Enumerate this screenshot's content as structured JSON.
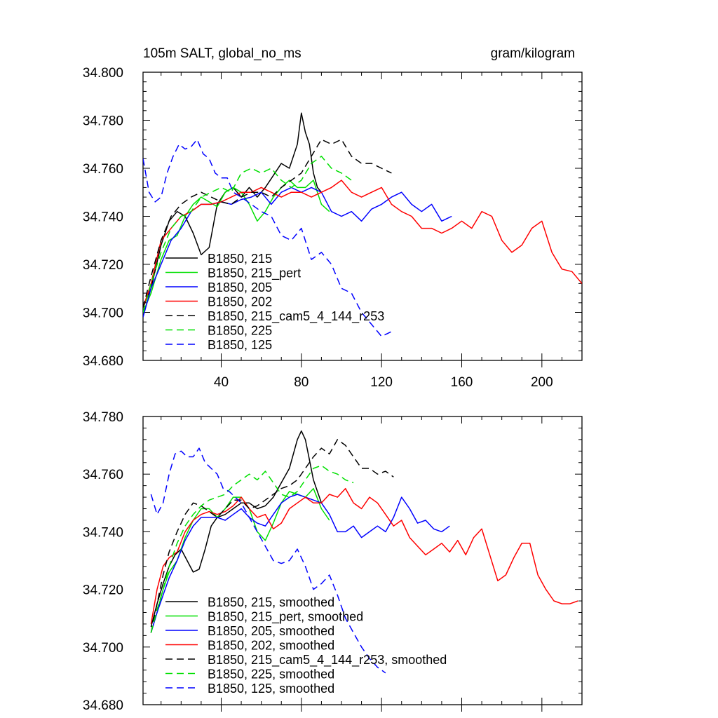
{
  "chart_data": [
    {
      "type": "line",
      "title_left": "105m SALT, global_no_ms",
      "title_right": "gram/kilogram",
      "xlim": [
        1,
        220
      ],
      "ylim": [
        34.68,
        34.8
      ],
      "xticks": [
        40,
        80,
        120,
        160,
        200
      ],
      "xtick_labels": [
        "40",
        "80",
        "120",
        "160",
        "200"
      ],
      "yticks": [
        34.68,
        34.7,
        34.72,
        34.74,
        34.76,
        34.78,
        34.8
      ],
      "ytick_labels": [
        "34.680",
        "34.700",
        "34.720",
        "34.740",
        "34.760",
        "34.780",
        "34.800"
      ],
      "series": [
        {
          "name": "B1850, 215",
          "color": "#000000",
          "dash": "solid",
          "x": [
            1,
            5,
            10,
            14,
            18,
            22,
            26,
            30,
            34,
            38,
            42,
            46,
            50,
            54,
            58,
            62,
            66,
            70,
            74,
            78,
            80,
            82,
            84,
            86,
            88,
            90
          ],
          "y": [
            34.702,
            34.71,
            34.728,
            34.738,
            34.742,
            34.74,
            34.733,
            34.724,
            34.727,
            34.745,
            34.75,
            34.752,
            34.748,
            34.752,
            34.748,
            34.752,
            34.757,
            34.762,
            34.76,
            34.77,
            34.783,
            34.775,
            34.77,
            34.758,
            34.752,
            34.75
          ]
        },
        {
          "name": "B1850, 215_pert",
          "color": "#00e000",
          "dash": "solid",
          "x": [
            1,
            5,
            10,
            14,
            18,
            22,
            26,
            30,
            34,
            38,
            42,
            46,
            50,
            54,
            58,
            62,
            66,
            70,
            74,
            78,
            82,
            86,
            90,
            94
          ],
          "y": [
            34.7,
            34.708,
            34.722,
            34.73,
            34.732,
            34.74,
            34.745,
            34.748,
            34.746,
            34.744,
            34.75,
            34.752,
            34.75,
            34.745,
            34.738,
            34.742,
            34.748,
            34.752,
            34.755,
            34.752,
            34.752,
            34.755,
            34.745,
            34.742
          ]
        },
        {
          "name": "B1850, 205",
          "color": "#0000ff",
          "dash": "solid",
          "x": [
            1,
            5,
            10,
            15,
            20,
            25,
            30,
            35,
            40,
            45,
            50,
            55,
            60,
            65,
            70,
            75,
            80,
            85,
            90,
            95,
            100,
            105,
            110,
            115,
            120,
            125,
            130,
            135,
            140,
            145,
            150,
            155
          ],
          "y": [
            34.698,
            34.71,
            34.72,
            34.73,
            34.735,
            34.742,
            34.745,
            34.745,
            34.746,
            34.745,
            34.747,
            34.748,
            34.75,
            34.745,
            34.75,
            34.752,
            34.75,
            34.752,
            34.75,
            34.742,
            34.74,
            34.742,
            34.738,
            34.743,
            34.745,
            34.748,
            34.75,
            34.745,
            34.742,
            34.745,
            34.738,
            34.74
          ]
        },
        {
          "name": "B1850, 202",
          "color": "#ff0000",
          "dash": "solid",
          "x": [
            1,
            5,
            10,
            15,
            20,
            25,
            30,
            35,
            40,
            45,
            50,
            55,
            60,
            65,
            70,
            75,
            80,
            85,
            90,
            95,
            100,
            105,
            110,
            115,
            120,
            125,
            130,
            135,
            140,
            145,
            150,
            155,
            160,
            165,
            170,
            175,
            180,
            185,
            190,
            195,
            200,
            205,
            210,
            215,
            220
          ],
          "y": [
            34.702,
            34.712,
            34.73,
            34.735,
            34.74,
            34.742,
            34.745,
            34.745,
            34.746,
            34.748,
            34.75,
            34.75,
            34.752,
            34.75,
            34.748,
            34.75,
            34.75,
            34.748,
            34.75,
            34.752,
            34.755,
            34.75,
            34.748,
            34.75,
            34.752,
            34.745,
            34.742,
            34.74,
            34.735,
            34.735,
            34.733,
            34.735,
            34.738,
            34.735,
            34.742,
            34.74,
            34.73,
            34.725,
            34.728,
            34.735,
            34.738,
            34.725,
            34.718,
            34.717,
            34.712
          ]
        },
        {
          "name": "B1850, 215_cam5_4_144_r253",
          "color": "#000000",
          "dash": "dashed",
          "x": [
            1,
            5,
            10,
            15,
            20,
            25,
            30,
            35,
            40,
            45,
            50,
            55,
            60,
            65,
            70,
            75,
            80,
            85,
            90,
            95,
            100,
            105,
            110,
            115,
            120,
            125
          ],
          "y": [
            34.702,
            34.715,
            34.73,
            34.74,
            34.745,
            34.748,
            34.75,
            34.748,
            34.746,
            34.745,
            34.748,
            34.75,
            34.75,
            34.748,
            34.752,
            34.755,
            34.758,
            34.765,
            34.772,
            34.77,
            34.772,
            34.765,
            34.762,
            34.762,
            34.76,
            34.758
          ]
        },
        {
          "name": "B1850, 225",
          "color": "#00e000",
          "dash": "dashed",
          "x": [
            1,
            5,
            10,
            15,
            20,
            25,
            30,
            35,
            40,
            45,
            50,
            55,
            60,
            65,
            70,
            75,
            80,
            85,
            90,
            95,
            100,
            105
          ],
          "y": [
            34.7,
            34.712,
            34.725,
            34.735,
            34.74,
            34.742,
            34.748,
            34.75,
            34.752,
            34.75,
            34.758,
            34.76,
            34.758,
            34.76,
            34.755,
            34.752,
            34.755,
            34.762,
            34.765,
            34.76,
            34.758,
            34.755
          ]
        },
        {
          "name": "B1850, 125",
          "color": "#0000ff",
          "dash": "dashed",
          "x": [
            1,
            4,
            7,
            10,
            13,
            16,
            19,
            22,
            25,
            28,
            31,
            34,
            37,
            40,
            43,
            46,
            50,
            55,
            60,
            65,
            70,
            75,
            80,
            85,
            90,
            95,
            100,
            105,
            110,
            115,
            120,
            125
          ],
          "y": [
            34.764,
            34.75,
            34.746,
            34.748,
            34.758,
            34.765,
            34.77,
            34.768,
            34.769,
            34.772,
            34.766,
            34.764,
            34.758,
            34.756,
            34.756,
            34.75,
            34.748,
            34.745,
            34.742,
            34.74,
            34.732,
            34.73,
            34.735,
            34.722,
            34.725,
            34.72,
            34.71,
            34.708,
            34.7,
            34.695,
            34.69,
            34.692
          ]
        }
      ]
    },
    {
      "type": "line",
      "xlim": [
        1,
        220
      ],
      "ylim": [
        34.68,
        34.78
      ],
      "xticks": [
        40,
        80,
        120,
        160,
        200
      ],
      "xtick_labels": [],
      "yticks": [
        34.68,
        34.7,
        34.72,
        34.74,
        34.76,
        34.78
      ],
      "ytick_labels": [
        "34.680",
        "34.700",
        "34.720",
        "34.740",
        "34.760",
        "34.780"
      ],
      "series": [
        {
          "name": "B1850, 215, smoothed",
          "color": "#000000",
          "dash": "solid",
          "x": [
            5,
            8,
            11,
            14,
            17,
            20,
            23,
            26,
            29,
            32,
            35,
            38,
            42,
            46,
            50,
            54,
            58,
            62,
            66,
            70,
            74,
            78,
            80,
            82,
            84,
            86,
            88,
            90
          ],
          "y": [
            34.707,
            34.715,
            34.722,
            34.728,
            34.732,
            34.734,
            34.73,
            34.726,
            34.727,
            34.734,
            34.742,
            34.745,
            34.746,
            34.748,
            34.75,
            34.75,
            34.748,
            34.749,
            34.752,
            34.757,
            34.762,
            34.772,
            34.775,
            34.772,
            34.765,
            34.758,
            34.754,
            34.75
          ]
        },
        {
          "name": "B1850, 215_pert, smoothed",
          "color": "#00e000",
          "dash": "solid",
          "x": [
            5,
            8,
            11,
            14,
            18,
            22,
            26,
            30,
            34,
            38,
            42,
            46,
            50,
            54,
            58,
            62,
            66,
            70,
            74,
            78,
            82,
            86,
            90,
            94
          ],
          "y": [
            34.705,
            34.712,
            34.72,
            34.726,
            34.73,
            34.738,
            34.744,
            34.748,
            34.748,
            34.745,
            34.748,
            34.752,
            34.752,
            34.748,
            34.74,
            34.737,
            34.743,
            34.75,
            34.754,
            34.753,
            34.752,
            34.755,
            34.748,
            34.744
          ]
        },
        {
          "name": "B1850, 205, smoothed",
          "color": "#0000ff",
          "dash": "solid",
          "x": [
            5,
            8,
            11,
            14,
            18,
            22,
            26,
            30,
            34,
            38,
            42,
            46,
            50,
            54,
            58,
            62,
            66,
            70,
            74,
            78,
            82,
            86,
            90,
            94,
            98,
            102,
            106,
            110,
            114,
            118,
            122,
            126,
            130,
            134,
            138,
            142,
            146,
            150,
            154
          ],
          "y": [
            34.705,
            34.712,
            34.718,
            34.724,
            34.73,
            34.737,
            34.742,
            34.745,
            34.745,
            34.745,
            34.744,
            34.746,
            34.748,
            34.745,
            34.743,
            34.742,
            34.746,
            34.75,
            34.752,
            34.753,
            34.752,
            34.751,
            34.75,
            34.746,
            34.74,
            34.74,
            34.742,
            34.738,
            34.74,
            34.742,
            34.74,
            34.745,
            34.752,
            34.748,
            34.743,
            34.744,
            34.741,
            34.74,
            34.742
          ]
        },
        {
          "name": "B1850, 202, smoothed",
          "color": "#ff0000",
          "dash": "solid",
          "x": [
            5,
            8,
            11,
            14,
            18,
            22,
            26,
            30,
            34,
            38,
            42,
            46,
            50,
            54,
            58,
            62,
            66,
            70,
            74,
            78,
            82,
            86,
            90,
            94,
            98,
            102,
            106,
            110,
            114,
            118,
            122,
            126,
            130,
            134,
            138,
            142,
            146,
            150,
            154,
            158,
            162,
            166,
            170,
            174,
            178,
            182,
            186,
            190,
            194,
            198,
            202,
            206,
            210,
            214,
            218
          ],
          "y": [
            34.708,
            34.72,
            34.728,
            34.731,
            34.733,
            34.74,
            34.744,
            34.746,
            34.747,
            34.746,
            34.747,
            34.749,
            34.752,
            34.748,
            34.745,
            34.746,
            34.741,
            34.743,
            34.748,
            34.75,
            34.752,
            34.75,
            34.75,
            34.753,
            34.752,
            34.755,
            34.75,
            34.748,
            34.752,
            34.75,
            34.746,
            34.742,
            34.744,
            34.738,
            34.735,
            34.732,
            34.734,
            34.736,
            34.733,
            34.737,
            34.732,
            34.738,
            34.741,
            34.732,
            34.723,
            34.725,
            34.731,
            34.736,
            34.736,
            34.725,
            34.72,
            34.716,
            34.715,
            34.715,
            34.716
          ]
        },
        {
          "name": "B1850, 215_cam5_4_144_r253, smoothed",
          "color": "#000000",
          "dash": "dashed",
          "x": [
            5,
            8,
            11,
            14,
            18,
            22,
            26,
            30,
            34,
            38,
            42,
            46,
            50,
            54,
            58,
            62,
            66,
            70,
            74,
            78,
            82,
            86,
            90,
            94,
            98,
            102,
            106,
            110,
            114,
            118,
            122,
            126
          ],
          "y": [
            34.705,
            34.715,
            34.725,
            34.733,
            34.74,
            34.746,
            34.75,
            34.749,
            34.747,
            34.745,
            34.748,
            34.751,
            34.751,
            34.748,
            34.749,
            34.751,
            34.753,
            34.755,
            34.756,
            34.758,
            34.762,
            34.766,
            34.769,
            34.767,
            34.772,
            34.77,
            34.766,
            34.762,
            34.762,
            34.76,
            34.761,
            34.759
          ]
        },
        {
          "name": "B1850, 225, smoothed",
          "color": "#00e000",
          "dash": "dashed",
          "x": [
            5,
            8,
            11,
            14,
            18,
            22,
            26,
            30,
            34,
            38,
            42,
            46,
            50,
            54,
            58,
            62,
            66,
            70,
            74,
            78,
            82,
            86,
            90,
            94,
            98,
            102,
            106
          ],
          "y": [
            34.705,
            34.713,
            34.72,
            34.728,
            34.736,
            34.742,
            34.746,
            34.749,
            34.751,
            34.752,
            34.753,
            34.756,
            34.758,
            34.76,
            34.758,
            34.761,
            34.757,
            34.753,
            34.752,
            34.754,
            34.758,
            34.762,
            34.763,
            34.761,
            34.76,
            34.758,
            34.757
          ]
        },
        {
          "name": "B1850, 125, smoothed",
          "color": "#0000ff",
          "dash": "dashed",
          "x": [
            5,
            8,
            11,
            14,
            17,
            20,
            23,
            26,
            29,
            32,
            35,
            38,
            41,
            44,
            47,
            50,
            54,
            58,
            62,
            66,
            70,
            74,
            78,
            82,
            86,
            90,
            94,
            98,
            102,
            106,
            110,
            114,
            118,
            122
          ],
          "y": [
            34.753,
            34.746,
            34.75,
            34.76,
            34.767,
            34.768,
            34.766,
            34.766,
            34.769,
            34.764,
            34.762,
            34.76,
            34.755,
            34.754,
            34.752,
            34.75,
            34.745,
            34.74,
            34.735,
            34.73,
            34.729,
            34.73,
            34.734,
            34.728,
            34.72,
            34.722,
            34.725,
            34.718,
            34.71,
            34.705,
            34.7,
            34.696,
            34.693,
            34.691
          ]
        }
      ]
    }
  ]
}
